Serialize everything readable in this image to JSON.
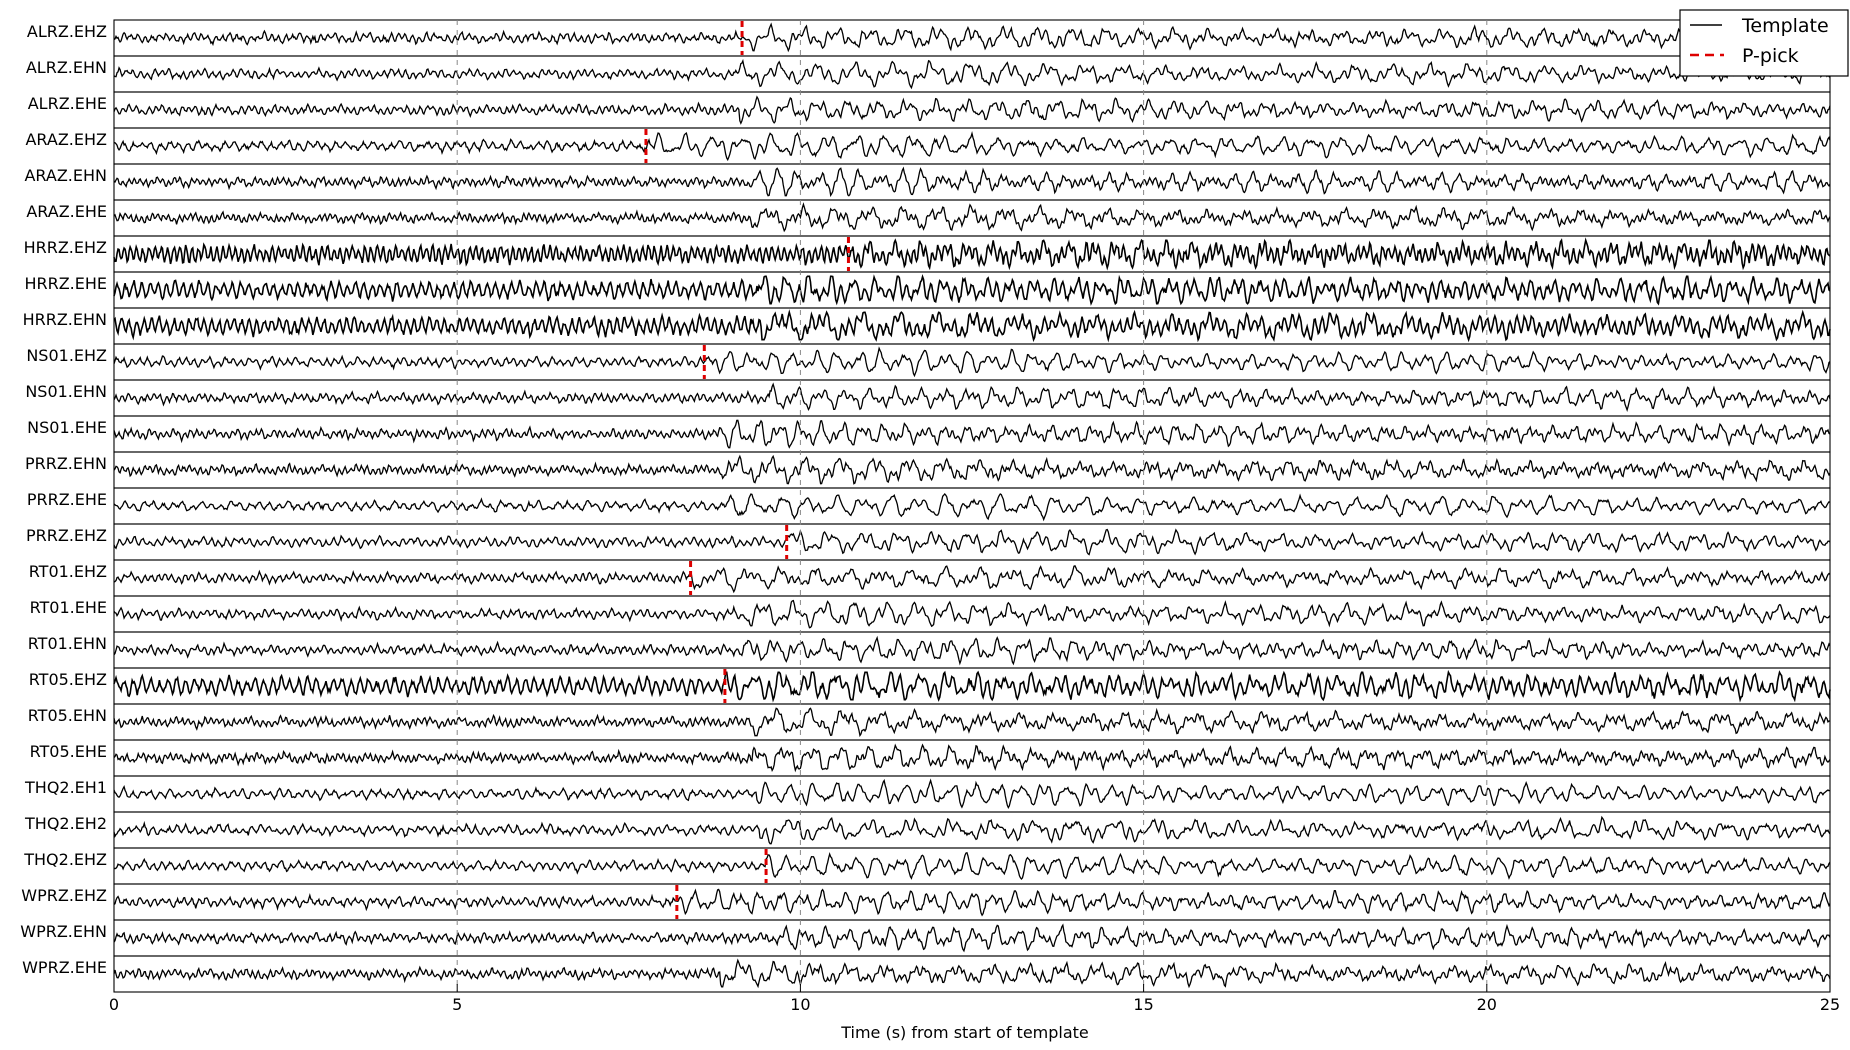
{
  "chart_data": {
    "type": "line",
    "xlabel": "Time (s) from start of template",
    "ylabel": "",
    "xlim": [
      0,
      25
    ],
    "xticks": [
      0,
      5,
      10,
      15,
      20,
      25
    ],
    "grid": "vertical dashed at major ticks",
    "legend_position": "top-right",
    "legend": [
      {
        "label": "Template",
        "style": "solid",
        "color": "#000000"
      },
      {
        "label": "P-pick",
        "style": "dashed",
        "color": "#dd0000"
      }
    ],
    "series": [
      {
        "name": "ALRZ.EHZ",
        "pick": 9.15
      },
      {
        "name": "ALRZ.EHN",
        "pick": null
      },
      {
        "name": "ALRZ.EHE",
        "pick": null
      },
      {
        "name": "ARAZ.EHZ",
        "pick": 7.75
      },
      {
        "name": "ARAZ.EHN",
        "pick": null
      },
      {
        "name": "ARAZ.EHE",
        "pick": null
      },
      {
        "name": "HRRZ.EHZ",
        "pick": 10.7
      },
      {
        "name": "HRRZ.EHE",
        "pick": null
      },
      {
        "name": "HRRZ.EHN",
        "pick": null
      },
      {
        "name": "NS01.EHZ",
        "pick": 8.6
      },
      {
        "name": "NS01.EHN",
        "pick": null
      },
      {
        "name": "NS01.EHE",
        "pick": null
      },
      {
        "name": "PRRZ.EHN",
        "pick": null
      },
      {
        "name": "PRRZ.EHE",
        "pick": null
      },
      {
        "name": "PRRZ.EHZ",
        "pick": 9.8
      },
      {
        "name": "RT01.EHZ",
        "pick": 8.4
      },
      {
        "name": "RT01.EHE",
        "pick": null
      },
      {
        "name": "RT01.EHN",
        "pick": null
      },
      {
        "name": "RT05.EHZ",
        "pick": 8.9
      },
      {
        "name": "RT05.EHN",
        "pick": null
      },
      {
        "name": "RT05.EHE",
        "pick": null
      },
      {
        "name": "THQ2.EH1",
        "pick": null
      },
      {
        "name": "THQ2.EH2",
        "pick": null
      },
      {
        "name": "THQ2.EHZ",
        "pick": 9.5
      },
      {
        "name": "WPRZ.EHZ",
        "pick": 8.2
      },
      {
        "name": "WPRZ.EHN",
        "pick": null
      },
      {
        "name": "WPRZ.EHE",
        "pick": null
      }
    ]
  },
  "colors": {
    "trace": "#000000",
    "pick": "#dd0000",
    "grid": "#888888"
  }
}
